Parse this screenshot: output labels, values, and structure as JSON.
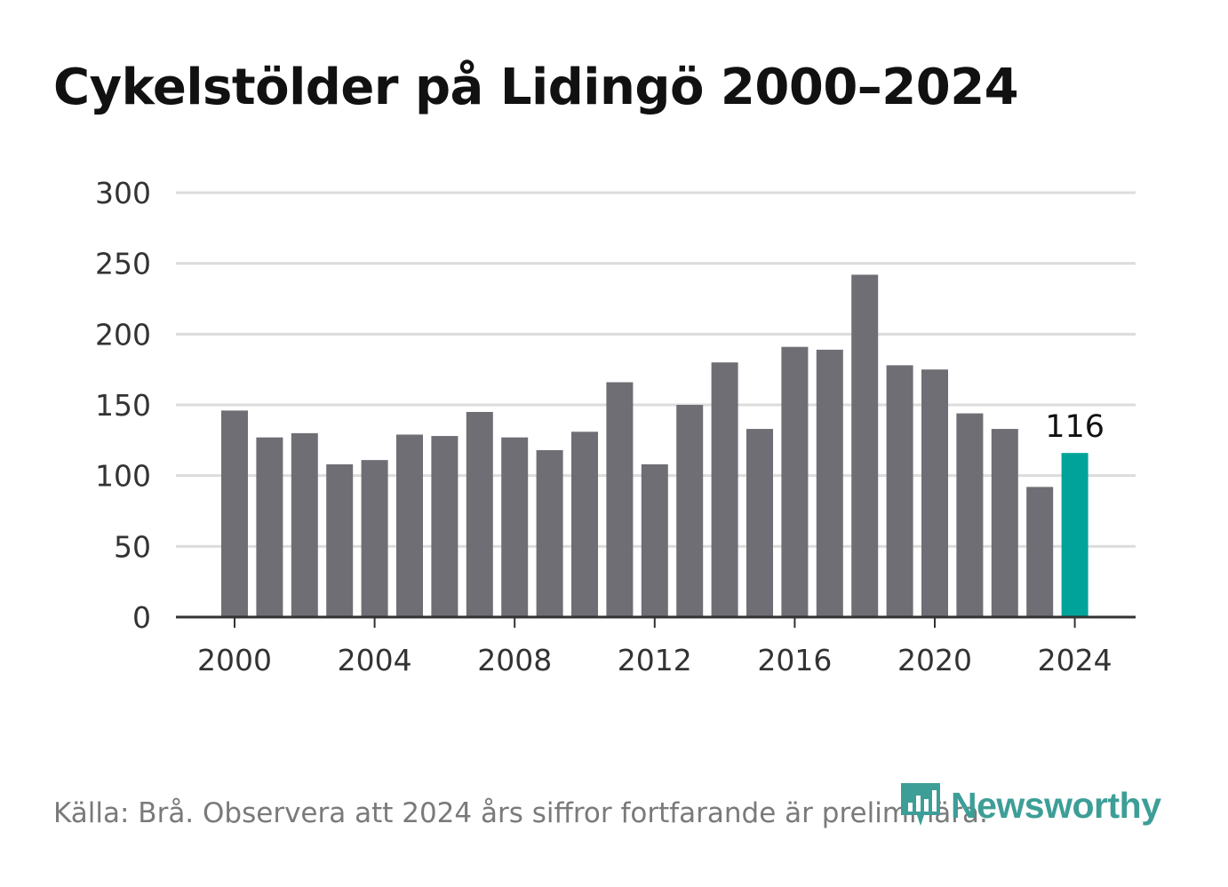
{
  "title": "Cykelstölder på Lidingö 2000–2024",
  "source": "Källa: Brå. Observera att 2024 års siffror fortfarande är preliminära.",
  "logo": {
    "text": "Newsworthy",
    "icon": "bar-chart-icon"
  },
  "colors": {
    "bar": "#6e6e74",
    "highlight": "#00a39a",
    "grid": "#dcdcdc",
    "axis": "#333333",
    "tick_text": "#333333"
  },
  "chart_data": {
    "type": "bar",
    "title": "Cykelstölder på Lidingö 2000–2024",
    "xlabel": "",
    "ylabel": "",
    "x": [
      2000,
      2001,
      2002,
      2003,
      2004,
      2005,
      2006,
      2007,
      2008,
      2009,
      2010,
      2011,
      2012,
      2013,
      2014,
      2015,
      2016,
      2017,
      2018,
      2019,
      2020,
      2021,
      2022,
      2023,
      2024
    ],
    "values": [
      146,
      127,
      130,
      108,
      111,
      129,
      128,
      145,
      127,
      118,
      131,
      166,
      108,
      150,
      180,
      133,
      191,
      189,
      242,
      178,
      175,
      144,
      133,
      92,
      116
    ],
    "ylim": [
      0,
      300
    ],
    "yticks": [
      "0",
      "50",
      "100",
      "150",
      "200",
      "250",
      "300"
    ],
    "xticks": [
      "2000",
      "2004",
      "2008",
      "2012",
      "2016",
      "2020",
      "2024"
    ],
    "highlight_index": 24,
    "data_labels": [
      {
        "index": 24,
        "text": "116"
      }
    ],
    "grid": true
  }
}
